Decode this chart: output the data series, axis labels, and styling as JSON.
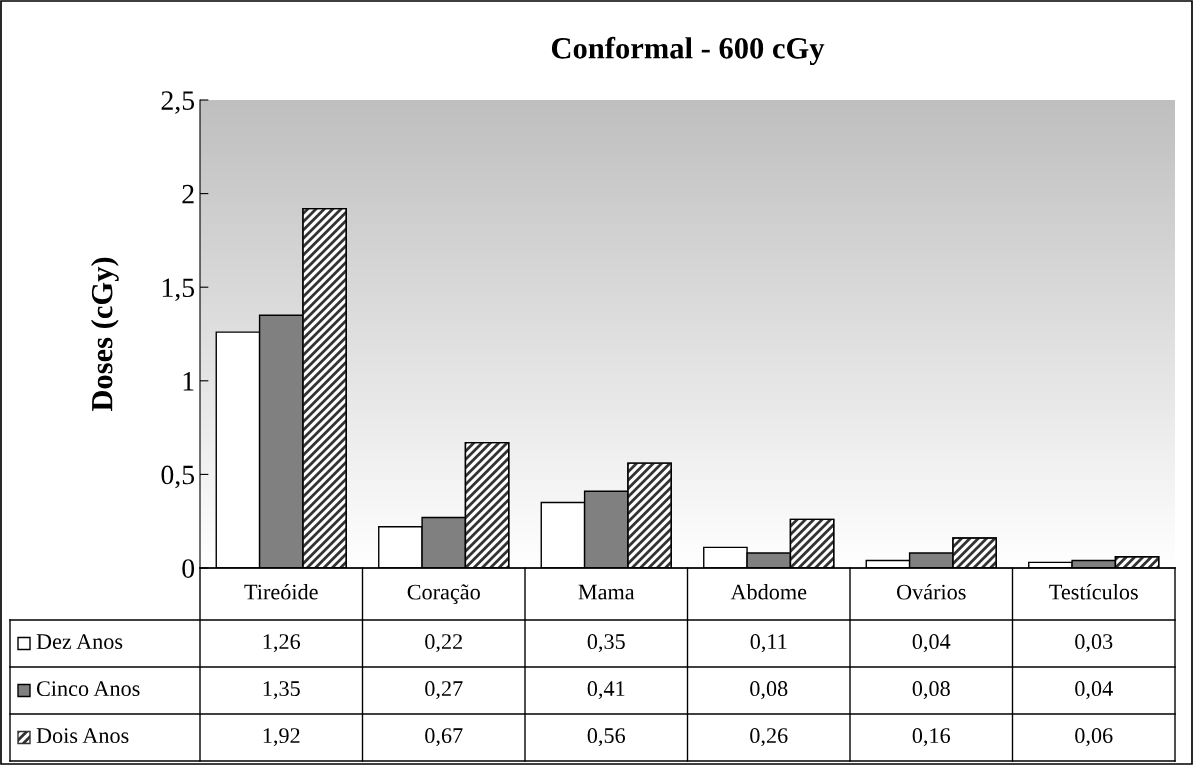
{
  "chart_data": {
    "type": "bar",
    "title": "Conformal - 600 cGy",
    "ylabel": "Doses (cGy)",
    "categories": [
      "Tireóide",
      "Coração",
      "Mama",
      "Abdome",
      "Ovários",
      "Testículos"
    ],
    "series": [
      {
        "name": "Dez Anos",
        "color": "#ffffff",
        "values": [
          1.26,
          0.22,
          0.35,
          0.11,
          0.04,
          0.03
        ],
        "value_labels": [
          "1,26",
          "0,22",
          "0,35",
          "0,11",
          "0,04",
          "0,03"
        ]
      },
      {
        "name": "Cinco Anos",
        "color": "#808080",
        "values": [
          1.35,
          0.27,
          0.41,
          0.08,
          0.08,
          0.04
        ],
        "value_labels": [
          "1,35",
          "0,27",
          "0,41",
          "0,08",
          "0,08",
          "0,04"
        ]
      },
      {
        "name": "Dois Anos",
        "color": "#333333",
        "values": [
          1.92,
          0.67,
          0.56,
          0.26,
          0.16,
          0.06
        ],
        "value_labels": [
          "1,92",
          "0,67",
          "0,56",
          "0,26",
          "0,16",
          "0,06"
        ]
      }
    ],
    "ylim": [
      0,
      2.5
    ],
    "yticks": [
      0,
      {
        "value": 0.5,
        "label": "0,5"
      },
      1,
      {
        "value": 1.5,
        "label": "1,5"
      },
      2,
      {
        "value": 2.5,
        "label": "2,5"
      }
    ],
    "grid": false,
    "legend": "bottom"
  }
}
